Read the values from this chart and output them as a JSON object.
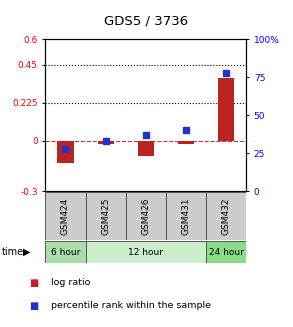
{
  "title": "GDS5 / 3736",
  "samples": [
    "GSM424",
    "GSM425",
    "GSM426",
    "GSM431",
    "GSM432"
  ],
  "log_ratio": [
    -0.13,
    -0.02,
    -0.09,
    -0.02,
    0.37
  ],
  "percentile_rank": [
    28,
    33,
    37,
    40,
    78
  ],
  "time_groups": [
    {
      "label": "6 hour",
      "samples_idx": [
        0
      ],
      "color": "#aaddaa"
    },
    {
      "label": "12 hour",
      "samples_idx": [
        1,
        2,
        3
      ],
      "color": "#cceecc"
    },
    {
      "label": "24 hour",
      "samples_idx": [
        4
      ],
      "color": "#88dd88"
    }
  ],
  "ylim_left": [
    -0.3,
    0.6
  ],
  "ylim_right": [
    0,
    100
  ],
  "yticks_left": [
    -0.3,
    0,
    0.225,
    0.45,
    0.6
  ],
  "ytick_labels_left": [
    "-0.3",
    "0",
    "0.225",
    "0.45",
    "0.6"
  ],
  "yticks_right": [
    0,
    25,
    50,
    75,
    100
  ],
  "ytick_labels_right": [
    "0",
    "25",
    "50",
    "75",
    "100%"
  ],
  "hlines": [
    0.225,
    0.45
  ],
  "bar_color": "#bb2222",
  "square_color": "#2233cc",
  "zero_line_color": "#cc3333",
  "sample_box_color": "#cccccc",
  "legend_bar_color": "#bb2222",
  "legend_sq_color": "#2233cc",
  "background_color": "#ffffff"
}
